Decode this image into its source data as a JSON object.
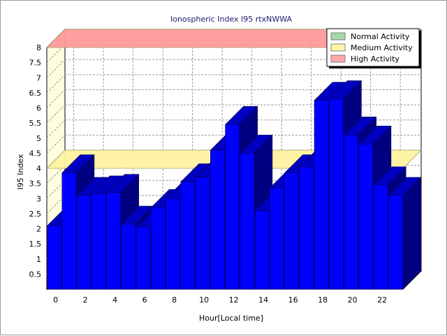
{
  "chart_data": {
    "type": "bar",
    "title": "Ionospheric Index I95 rtxNWWA",
    "xlabel": "Hour[Local time]",
    "ylabel": "I95 Index",
    "x": [
      0,
      1,
      2,
      3,
      4,
      5,
      6,
      7,
      8,
      9,
      10,
      11,
      12,
      13,
      14,
      15,
      16,
      17,
      18,
      19,
      20,
      21,
      22,
      23
    ],
    "x_tick_labels": [
      "0",
      "2",
      "4",
      "6",
      "8",
      "10",
      "12",
      "14",
      "16",
      "18",
      "20",
      "22"
    ],
    "y_tick_labels": [
      "0.5",
      "1",
      "1.5",
      "2",
      "2.5",
      "3",
      "3.5",
      "4",
      "4.5",
      "5",
      "5.5",
      "6",
      "6.5",
      "7",
      "7.5",
      "8"
    ],
    "values": [
      2.1,
      3.85,
      3.1,
      3.15,
      3.2,
      2.15,
      2.05,
      2.7,
      3.0,
      3.55,
      3.7,
      4.6,
      5.45,
      4.5,
      2.6,
      3.35,
      3.85,
      4.05,
      6.25,
      6.3,
      5.1,
      4.8,
      3.45,
      3.1
    ],
    "ylim": [
      0,
      8
    ],
    "grid": true,
    "bar_color": "#0000ff",
    "bar_top_color": "#0000c0",
    "bar_side_color": "#000080",
    "bands": [
      {
        "name": "Normal Activity",
        "from": 2,
        "to": 2,
        "color": "#a8d8a8",
        "legend_color": "#a8d8a8"
      },
      {
        "name": "Medium Activity",
        "from": 4,
        "to": 4,
        "color": "#fff2a0",
        "legend_color": "#fff6a8"
      },
      {
        "name": "High Activity",
        "from": 8,
        "to": 8,
        "color": "#ff9a9a",
        "legend_color": "#ffaaaa"
      }
    ],
    "legend_position": "top-right"
  }
}
